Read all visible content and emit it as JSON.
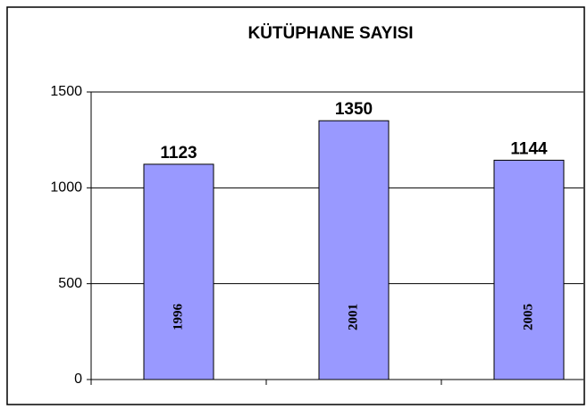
{
  "chart_data": {
    "type": "bar",
    "title": "KÜTÜPHANE SAYISI",
    "categories": [
      "1996",
      "2001",
      "2005"
    ],
    "values": [
      1123,
      1350,
      1144
    ],
    "color": "#9999ff",
    "ylim": [
      0,
      1500
    ],
    "yticks": [
      0,
      500,
      1000,
      1500
    ],
    "grid": true
  }
}
